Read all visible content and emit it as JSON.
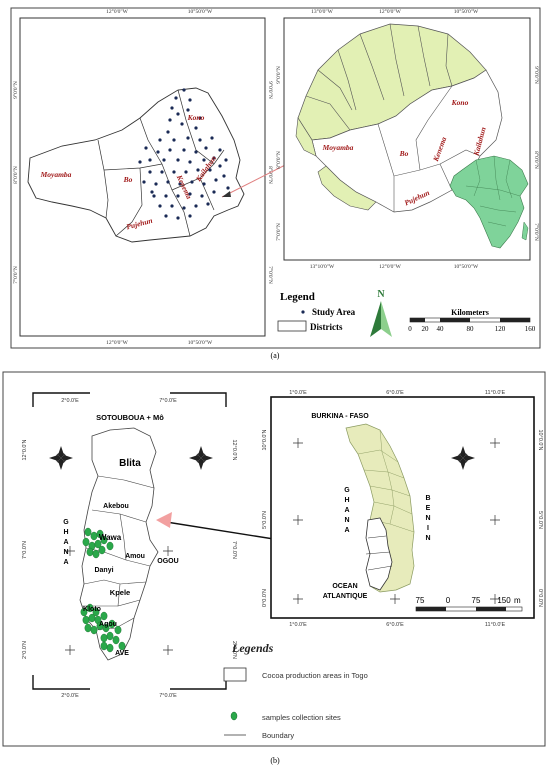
{
  "panel_a": {
    "caption": "(a)",
    "left_map": {
      "lon_ticks": [
        "12°0'0\"W",
        "10°50'0\"W"
      ],
      "lat_ticks": [
        "9°0'0\"N",
        "8°0'0\"N",
        "7°0'0\"N"
      ],
      "districts": [
        "Kono",
        "Moyamba",
        "Bo",
        "Kenema",
        "Kailahun",
        "Pujehun"
      ]
    },
    "right_map": {
      "lon_ticks_top": [
        "13°0'0\"W",
        "12°0'0\"W",
        "10°50'0\"W"
      ],
      "lon_ticks_bottom": [
        "13°10'0\"W",
        "12°0'0\"W",
        "10°50'0\"W"
      ],
      "lat_ticks": [
        "9°0'0\"N",
        "8°0'0\"N",
        "7°0'0\"N"
      ],
      "districts": [
        "Kono",
        "Moyamba",
        "Bo",
        "Kenema",
        "Kailahun",
        "Pujehun"
      ]
    },
    "legend": {
      "title": "Legend",
      "items": [
        "Study Area",
        "Districts"
      ]
    },
    "north_label": "N",
    "scale": {
      "title": "Kilometers",
      "ticks": [
        "0",
        "20",
        "40",
        "80",
        "120",
        "160"
      ]
    },
    "colors": {
      "district_fill": "#e2f0b4",
      "africa_fill": "#7fd39a",
      "label_red": "#a01818",
      "point": "#1a2a55"
    }
  },
  "panel_b": {
    "caption": "(b)",
    "left_map": {
      "lon_ticks": [
        "2°0.0'E",
        "7°0.0'E"
      ],
      "lat_ticks_left": [
        "12°0.0'N",
        "7°0.0'N",
        "2°0.0'N"
      ],
      "lat_ticks_right": [
        "12°0.0'N",
        "7°0.0'N",
        "2°0.0'N"
      ],
      "top_label": "SOTOUBOUA + Mô",
      "ghana_letters": [
        "G",
        "H",
        "A",
        "N",
        "A"
      ],
      "districts": [
        "Blita",
        "Akebou",
        "Wawa",
        "Amou",
        "OGOU",
        "Danyi",
        "Kpele",
        "Kloto",
        "Agou",
        "AVE"
      ]
    },
    "right_map": {
      "lon_ticks": [
        "1°0.0'E",
        "6°0.0'E",
        "11°0.0'E"
      ],
      "lat_ticks": [
        "10°0.0'N",
        "5°0.0'N",
        "0°0.0'N"
      ],
      "top_label": "BURKINA - FASO",
      "ghana_letters": [
        "G",
        "H",
        "A",
        "N",
        "A"
      ],
      "benin_letters": [
        "B",
        "E",
        "N",
        "I",
        "N"
      ],
      "ocean_label": [
        "OCEAN",
        "ATLANTIQUE"
      ],
      "scale_ticks": [
        "75",
        "0",
        "75",
        "150"
      ],
      "scale_unit": "m"
    },
    "legend": {
      "title": "Legends",
      "items": [
        "Cocoa production areas in Togo",
        "samples collection sites",
        "Boundary"
      ]
    },
    "colors": {
      "togo_fill": "#e7ebbb",
      "site_fill": "#2aa84a",
      "arrow": "#f2a0a0"
    }
  }
}
